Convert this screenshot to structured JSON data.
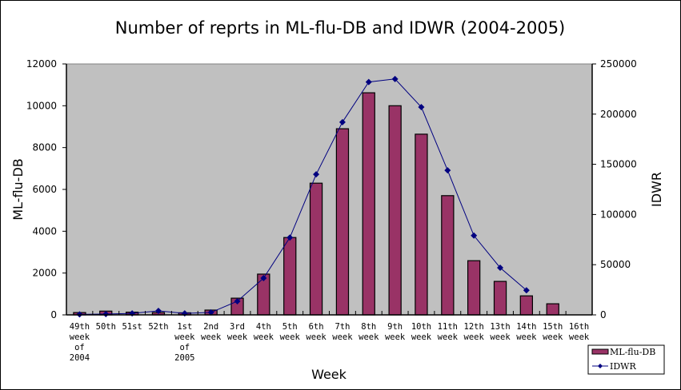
{
  "chart_data": {
    "type": "bar",
    "title": "Number of reprts in ML-flu-DB and IDWR (2004-2005)",
    "xlabel": "Week",
    "ylabel": "ML-flu-DB",
    "y2label": "IDWR",
    "ylim": [
      0,
      12000
    ],
    "y2lim": [
      0,
      250000
    ],
    "yticks": [
      "0",
      "2000",
      "4000",
      "6000",
      "8000",
      "10000",
      "12000"
    ],
    "y2ticks": [
      "0",
      "50000",
      "100000",
      "150000",
      "200000",
      "250000"
    ],
    "grid": false,
    "legend_position": "bottom-right",
    "categories": [
      [
        "49th",
        "week",
        "of",
        "2004"
      ],
      [
        "50th"
      ],
      [
        "51st"
      ],
      [
        "52th"
      ],
      [
        "1st",
        "week",
        "of",
        "2005"
      ],
      [
        "2nd",
        "week"
      ],
      [
        "3rd",
        "week"
      ],
      [
        "4th",
        "week"
      ],
      [
        "5th",
        "week"
      ],
      [
        "6th",
        "week"
      ],
      [
        "7th",
        "week"
      ],
      [
        "8th",
        "week"
      ],
      [
        "9th",
        "week"
      ],
      [
        "10th",
        "week"
      ],
      [
        "11th",
        "week"
      ],
      [
        "12th",
        "week"
      ],
      [
        "13th",
        "week"
      ],
      [
        "14th",
        "week"
      ],
      [
        "15th",
        "week"
      ],
      [
        "16th",
        "week"
      ]
    ],
    "series": [
      {
        "name": "ML-flu-DB",
        "type": "bar",
        "axis": "left",
        "color": "#993366",
        "values": [
          110,
          180,
          130,
          110,
          100,
          230,
          800,
          1950,
          3700,
          6300,
          8900,
          10620,
          10000,
          8640,
          5700,
          2590,
          1600,
          910,
          530,
          null
        ]
      },
      {
        "name": "IDWR",
        "type": "line",
        "axis": "right",
        "color": "#000080",
        "values": [
          500,
          800,
          1500,
          4000,
          1500,
          2500,
          13500,
          36600,
          77000,
          140000,
          192000,
          232000,
          235000,
          207000,
          144000,
          79000,
          47000,
          24500,
          null,
          null
        ]
      }
    ]
  },
  "colors": {
    "plot_background": "#c0c0c0",
    "bar_fill": "#993366",
    "line": "#000080"
  }
}
